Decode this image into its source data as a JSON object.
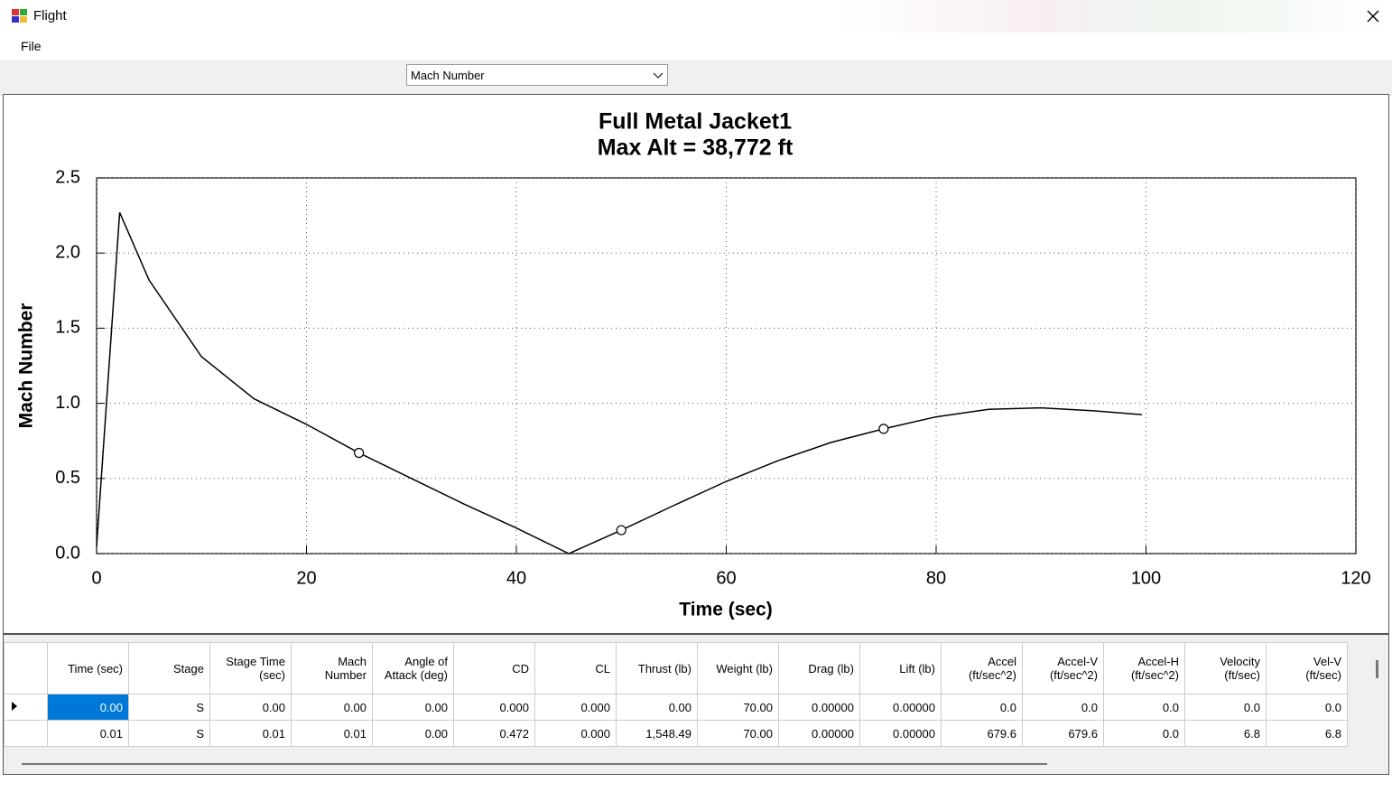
{
  "window": {
    "title": "Flight",
    "menu": [
      "File"
    ],
    "dropdown": "Mach Number"
  },
  "chart_data": {
    "type": "line",
    "title": [
      "Full Metal Jacket1",
      "Max Alt = 38,772 ft"
    ],
    "x_label": "Time (sec)",
    "y_label": "Mach Number",
    "x": [
      0,
      2.2,
      5,
      10,
      15,
      20,
      25,
      30,
      35,
      40,
      45,
      50,
      55,
      60,
      65,
      70,
      75,
      80,
      85,
      90,
      95,
      99.6
    ],
    "values": [
      0.05,
      2.27,
      1.82,
      1.31,
      1.03,
      0.86,
      0.67,
      0.5,
      0.33,
      0.17,
      0.0,
      0.156,
      0.32,
      0.48,
      0.62,
      0.74,
      0.83,
      0.91,
      0.96,
      0.97,
      0.95,
      0.925
    ],
    "markers": {
      "x": [
        25,
        50,
        75
      ],
      "values": [
        0.67,
        0.156,
        0.83
      ]
    },
    "color": "#000000",
    "xlim": [
      0,
      120
    ],
    "xticks": [
      0,
      20,
      40,
      60,
      80,
      100,
      120
    ],
    "ylim": [
      0,
      2.5
    ],
    "yticks": [
      {
        "value": 0,
        "label": "0.0"
      },
      {
        "value": 0.5,
        "label": "0.5"
      },
      {
        "value": 1,
        "label": "1.0"
      },
      {
        "value": 1.5,
        "label": "1.5"
      },
      {
        "value": 2,
        "label": "2.0"
      },
      {
        "value": 2.5,
        "label": "2.5"
      }
    ],
    "grid": true
  },
  "table": {
    "columns": [
      "Time (sec)",
      "Stage",
      "Stage Time\n(sec)",
      "Mach\nNumber",
      "Angle of\nAttack (deg)",
      "CD",
      "CL",
      "Thrust (lb)",
      "Weight (lb)",
      "Drag (lb)",
      "Lift (lb)",
      "Accel\n(ft/sec^2)",
      "Accel-V\n(ft/sec^2)",
      "Accel-H\n(ft/sec^2)",
      "Velocity\n(ft/sec)",
      "Vel-V\n(ft/sec)"
    ],
    "rows": [
      [
        "0.00",
        "S",
        "0.00",
        "0.00",
        "0.00",
        "0.000",
        "0.000",
        "0.00",
        "70.00",
        "0.00000",
        "0.00000",
        "0.0",
        "0.0",
        "0.0",
        "0.0",
        "0.0"
      ],
      [
        "0.01",
        "S",
        "0.01",
        "0.01",
        "0.00",
        "0.472",
        "0.000",
        "1,548.49",
        "70.00",
        "0.00000",
        "0.00000",
        "679.6",
        "679.6",
        "0.0",
        "6.8",
        "6.8"
      ]
    ]
  }
}
